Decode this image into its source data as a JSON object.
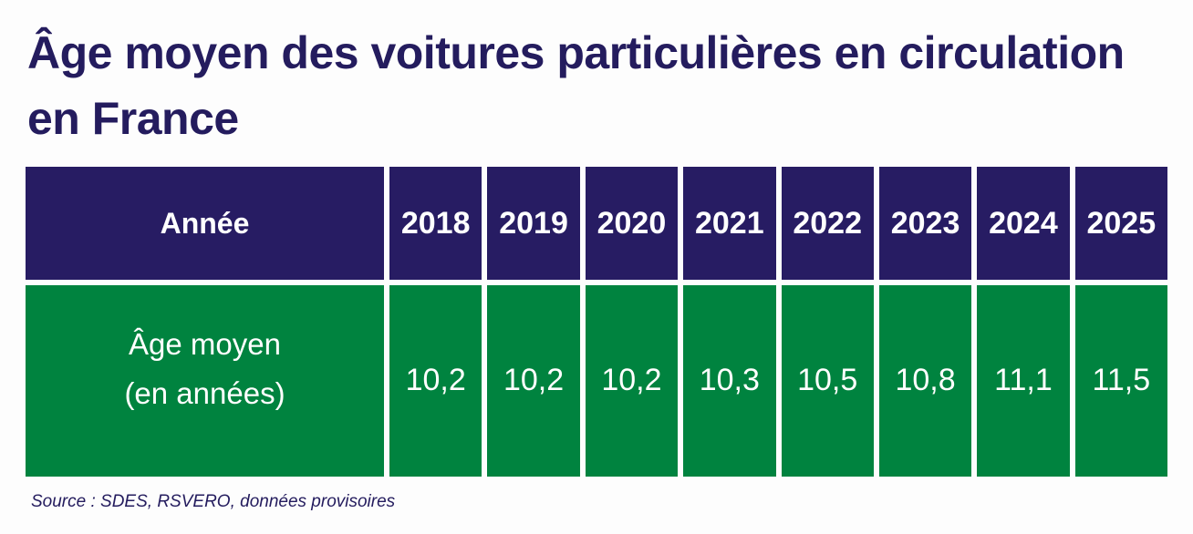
{
  "title": "Âge moyen des voitures particulières en circulation en France",
  "source": "Source : SDES, RSVERO, données provisoires",
  "colors": {
    "header_bg": "#271c63",
    "data_bg": "#00833f",
    "title": "#241c5e"
  },
  "chart_data": {
    "type": "table",
    "title": "Âge moyen des voitures particulières en circulation en France",
    "header_label": "Année",
    "row_label": "Âge moyen (en années)",
    "categories": [
      "2018",
      "2019",
      "2020",
      "2021",
      "2022",
      "2023",
      "2024",
      "2025"
    ],
    "values": [
      10.2,
      10.2,
      10.2,
      10.3,
      10.5,
      10.8,
      11.1,
      11.5
    ],
    "value_labels": [
      "10,2",
      "10,2",
      "10,2",
      "10,3",
      "10,5",
      "10,8",
      "11,1",
      "11,5"
    ]
  }
}
